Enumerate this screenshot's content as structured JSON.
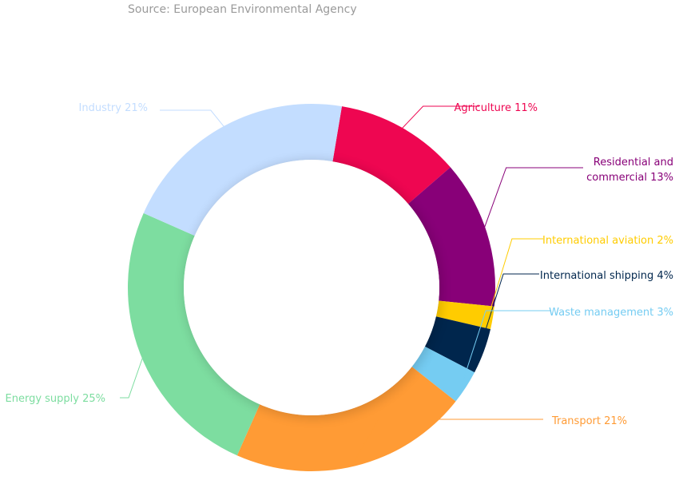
{
  "source": "Source: European Environmental Agency",
  "chart_data": {
    "type": "pie",
    "variant": "donut",
    "title": "",
    "unit": "%",
    "slices": [
      {
        "label": "Agriculture 11%",
        "lines": [
          "Agriculture 11%"
        ],
        "value": 11,
        "color": "#ee0651",
        "side": "right"
      },
      {
        "label": "Residential and commercial 13%",
        "lines": [
          "Residential and",
          "commercial 13%"
        ],
        "value": 13,
        "color": "#880078",
        "side": "right"
      },
      {
        "label": "International aviation 2%",
        "lines": [
          "International aviation 2%"
        ],
        "value": 2,
        "color": "#ffcc00",
        "side": "right"
      },
      {
        "label": "International shipping 4%",
        "lines": [
          "International shipping 4%"
        ],
        "value": 4,
        "color": "#00264d",
        "side": "right"
      },
      {
        "label": "Waste management 3%",
        "lines": [
          "Waste management 3%"
        ],
        "value": 3,
        "color": "#75ccf2",
        "side": "right"
      },
      {
        "label": "Transport 21%",
        "lines": [
          "Transport 21%"
        ],
        "value": 21,
        "color": "#ff9b35",
        "side": "right"
      },
      {
        "label": "Energy supply 25%",
        "lines": [
          "Energy supply 25%"
        ],
        "value": 25,
        "color": "#7ddda0",
        "side": "left"
      },
      {
        "label": "Industry 21%",
        "lines": [
          "Industry 21%"
        ],
        "value": 21,
        "color": "#c3ddff",
        "side": "left"
      }
    ]
  }
}
